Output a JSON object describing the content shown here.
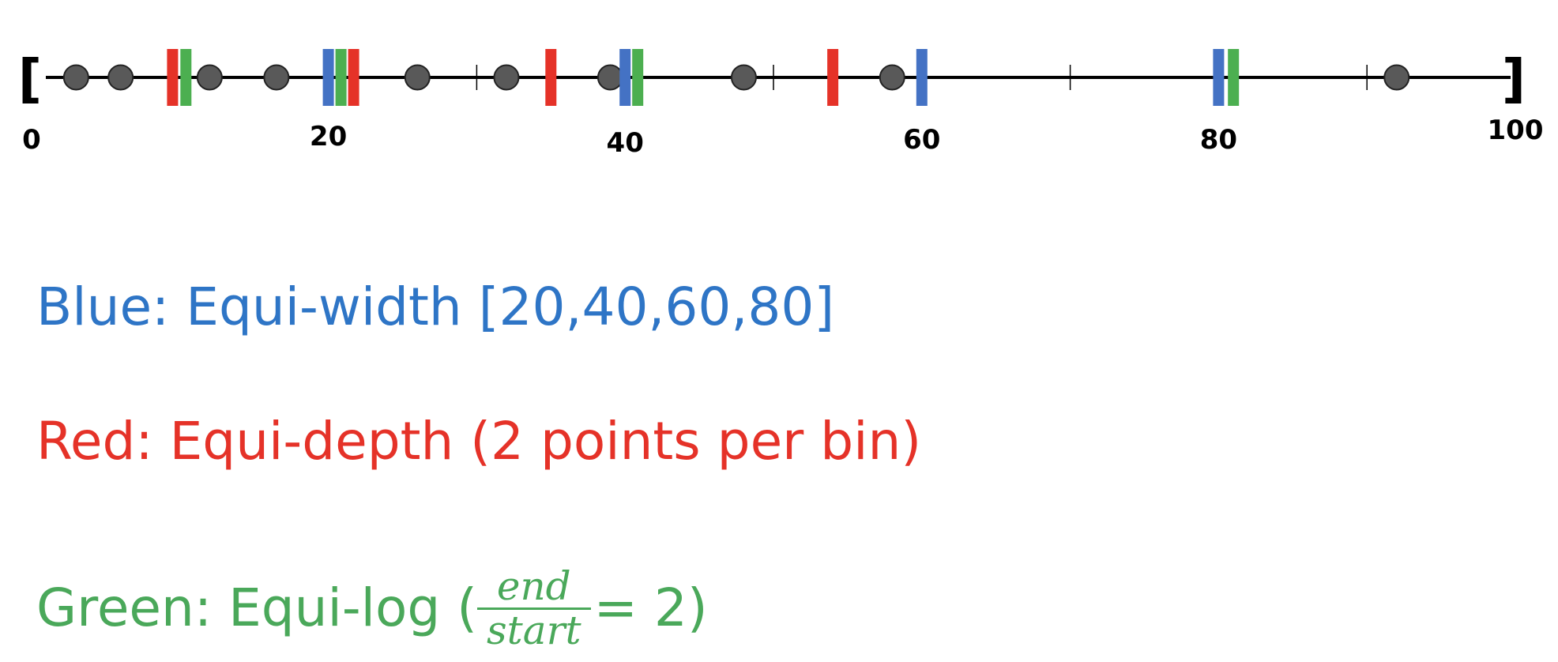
{
  "axis": {
    "min": 0,
    "max": 100,
    "labels": [
      {
        "value": 0,
        "text": "0"
      },
      {
        "value": 20,
        "text": "20"
      },
      {
        "value": 40,
        "text": "40"
      },
      {
        "value": 60,
        "text": "60"
      },
      {
        "value": 80,
        "text": "80"
      },
      {
        "value": 100,
        "text": "100"
      }
    ],
    "minor_ticks": [
      30,
      50,
      70,
      90
    ],
    "left_bracket": "[",
    "right_bracket": "]"
  },
  "points": [
    3,
    6,
    12,
    16.5,
    26,
    32,
    39,
    48,
    58,
    92
  ],
  "boundaries": {
    "blue": [
      20,
      40,
      60,
      80
    ],
    "red": [
      9.5,
      21,
      35,
      54
    ],
    "green": [
      10.4,
      20,
      40.6,
      81
    ]
  },
  "colors": {
    "blue": "#4472c4",
    "red": "#e53228",
    "green": "#4caf50",
    "blue_text": "#2e75c6",
    "green_text": "#4aa85a",
    "point_fill": "#595959",
    "axis": "#000000"
  },
  "legend": {
    "blue": "Blue: Equi-width [20,40,60,80]",
    "red": "Red: Equi-depth (2 points per bin)",
    "green_prefix": "Green: Equi-log (",
    "green_numerator": "end",
    "green_denominator": "start",
    "green_suffix": " = 2)"
  }
}
